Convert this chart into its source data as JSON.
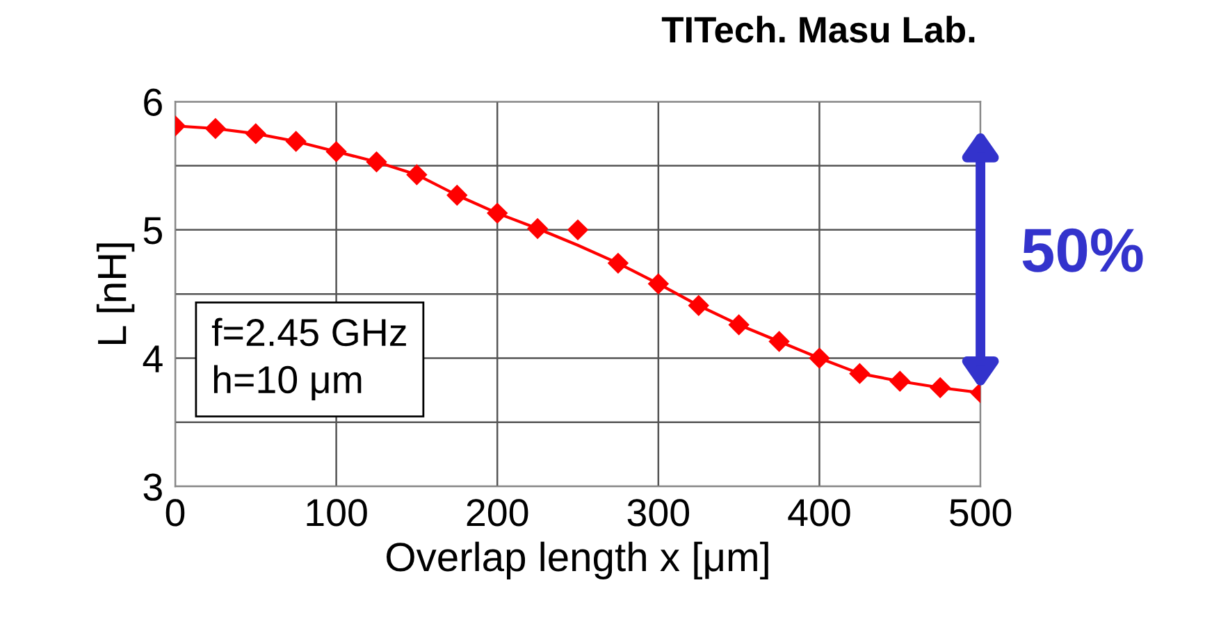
{
  "chart_data": {
    "type": "line",
    "title": "TITech. Masu Lab.",
    "xlabel": "Overlap length x [μm]",
    "ylabel": "L [nH]",
    "x": [
      0,
      25,
      50,
      75,
      100,
      125,
      150,
      175,
      200,
      225,
      250,
      275,
      300,
      325,
      350,
      375,
      400,
      425,
      450,
      475,
      500
    ],
    "series": [
      {
        "type": "scatter",
        "color": "#ff0000",
        "marker": "diamond",
        "values": [
          5.81,
          5.79,
          5.75,
          5.69,
          5.61,
          5.53,
          5.43,
          5.27,
          5.13,
          5.01,
          5.0,
          4.74,
          4.58,
          4.41,
          4.26,
          4.13,
          4.0,
          3.88,
          3.82,
          3.77,
          3.73
        ]
      },
      {
        "color": "#ff0000",
        "values": [
          5.81,
          5.79,
          5.75,
          5.69,
          5.61,
          5.53,
          5.43,
          5.27,
          5.13,
          5.01,
          4.88,
          4.74,
          4.58,
          4.41,
          4.26,
          4.13,
          4.0,
          3.88,
          3.82,
          3.77,
          3.73
        ]
      }
    ],
    "xlim": [
      0,
      500
    ],
    "xticks": [
      0,
      100,
      200,
      300,
      400,
      500
    ],
    "ylim": [
      3,
      6
    ],
    "yticks": [
      3,
      {
        "value": 3.5,
        "label": null
      },
      4,
      {
        "value": 4.5,
        "label": null
      },
      5,
      {
        "value": 5.5,
        "label": null
      },
      6
    ],
    "grid": true,
    "annotations": [
      "50%",
      "f=2.45 GHz\nh=10 μm"
    ]
  }
}
